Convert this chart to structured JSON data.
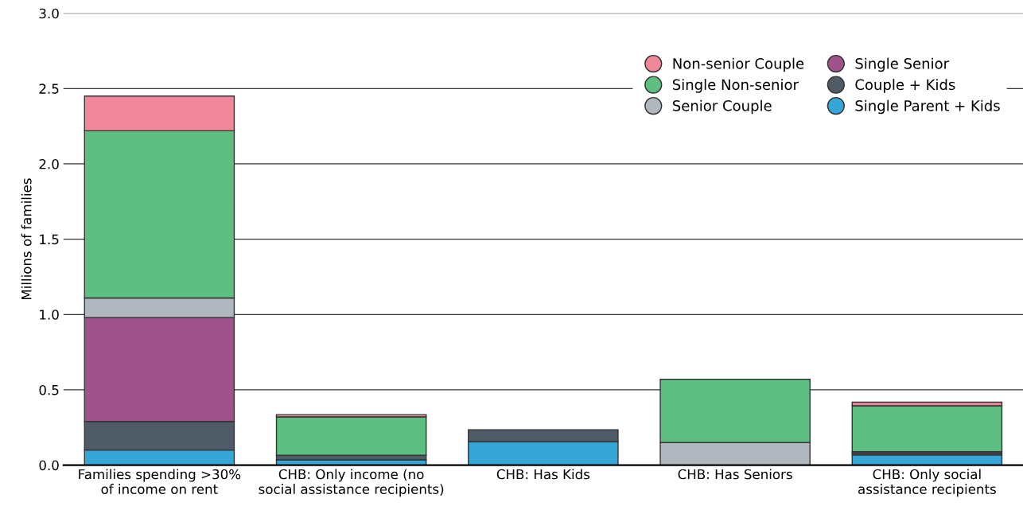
{
  "chart_data": {
    "type": "bar",
    "stacked": true,
    "ylabel": "Millions of families",
    "categories": [
      "Families spending >30%\nof income on rent",
      "CHB: Only income (no\nsocial assistance recipients)",
      "CHB: Has Kids",
      "CHB: Has Seniors",
      "CHB: Only social\nassistance recipients"
    ],
    "series": [
      {
        "name": "Single Parent + Kids",
        "color": "#36a6d6",
        "values": [
          0.1,
          0.035,
          0.155,
          null,
          0.067
        ]
      },
      {
        "name": "Couple + Kids",
        "color": "#4f5b66",
        "values": [
          0.19,
          0.03,
          0.08,
          null,
          0.012
        ]
      },
      {
        "name": "Single Senior",
        "color": "#a0528a",
        "values": [
          0.69,
          null,
          null,
          null,
          0.01
        ]
      },
      {
        "name": "Senior Couple",
        "color": "#b0b7bf",
        "values": [
          0.13,
          null,
          null,
          0.15,
          null
        ]
      },
      {
        "name": "Single Non-senior",
        "color": "#5fbf82",
        "values": [
          1.11,
          0.255,
          null,
          0.42,
          0.305
        ]
      },
      {
        "name": "Non-senior Couple",
        "color": "#f0879a",
        "values": [
          0.23,
          0.015,
          null,
          null,
          0.024
        ]
      }
    ],
    "ylim": [
      0,
      3.0
    ],
    "yticks": [
      {
        "value": 0,
        "label": "0.0"
      },
      0.5,
      {
        "value": 1,
        "label": "1.0"
      },
      1.5,
      {
        "value": 2,
        "label": "2.0"
      },
      2.5,
      {
        "value": 3,
        "label": "3.0"
      }
    ],
    "grid": "y",
    "legend": "top right"
  }
}
